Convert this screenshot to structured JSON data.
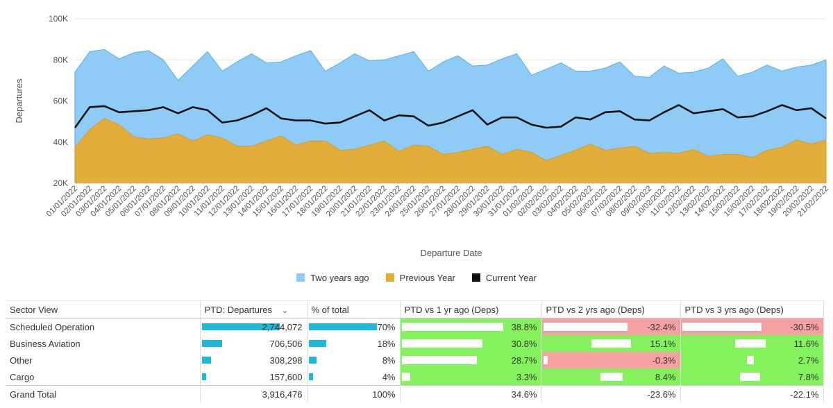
{
  "chart_data": {
    "type": "area",
    "ylabel": "Departures",
    "xlabel": "Departure Date",
    "ylim": [
      20000,
      100000
    ],
    "y_ticks": [
      20000,
      40000,
      60000,
      80000,
      100000
    ],
    "y_tick_labels": [
      "20K",
      "40K",
      "60K",
      "80K",
      "100K"
    ],
    "legend_position": "bottom",
    "grid": true,
    "x": [
      "01/01/2022",
      "02/01/2022",
      "03/01/2022",
      "04/01/2022",
      "05/01/2022",
      "06/01/2022",
      "07/01/2022",
      "08/01/2022",
      "09/01/2022",
      "10/01/2022",
      "11/01/2022",
      "12/01/2022",
      "13/01/2022",
      "14/01/2022",
      "15/01/2022",
      "16/01/2022",
      "17/01/2022",
      "18/01/2022",
      "19/01/2022",
      "20/01/2022",
      "21/01/2022",
      "22/01/2022",
      "23/01/2022",
      "24/01/2022",
      "25/01/2022",
      "26/01/2022",
      "27/01/2022",
      "28/01/2022",
      "29/01/2022",
      "30/01/2022",
      "31/01/2022",
      "01/02/2022",
      "02/02/2022",
      "03/02/2022",
      "04/02/2022",
      "05/02/2022",
      "06/02/2022",
      "07/02/2022",
      "08/02/2022",
      "09/02/2022",
      "10/02/2022",
      "11/02/2022",
      "12/02/2022",
      "13/02/2022",
      "14/02/2022",
      "15/02/2022",
      "16/02/2022",
      "17/02/2022",
      "18/02/2022",
      "19/02/2022",
      "20/02/2022",
      "21/02/2022"
    ],
    "series": [
      {
        "name": "Two years ago",
        "color": "#8ecbf7",
        "kind": "area",
        "values": [
          74000,
          84000,
          85000,
          80500,
          83500,
          84500,
          80000,
          70000,
          77000,
          84000,
          74500,
          79000,
          83000,
          78500,
          79000,
          82000,
          84500,
          74500,
          78500,
          83000,
          79500,
          80000,
          82000,
          84000,
          74500,
          79000,
          82000,
          77000,
          77500,
          80500,
          83000,
          72500,
          75500,
          78500,
          74500,
          74500,
          76000,
          79000,
          72000,
          71500,
          77000,
          73500,
          74000,
          76000,
          80500,
          72000,
          74000,
          77500,
          74500,
          76500,
          77500,
          80000
        ]
      },
      {
        "name": "Previous Year",
        "color": "#e3ad3a",
        "kind": "area",
        "values": [
          37500,
          46000,
          51500,
          48500,
          42500,
          41500,
          42000,
          44000,
          40500,
          43500,
          42000,
          38000,
          38000,
          40500,
          43000,
          38500,
          40500,
          40500,
          36000,
          36500,
          38500,
          40500,
          35500,
          38500,
          38000,
          34000,
          35000,
          36500,
          38000,
          34000,
          36500,
          35000,
          31000,
          33500,
          36000,
          39000,
          36000,
          37000,
          38000,
          34500,
          35000,
          34500,
          36500,
          33000,
          34000,
          34000,
          32500,
          36000,
          37500,
          41000,
          39000,
          41000
        ]
      },
      {
        "name": "Current Year",
        "color": "#111111",
        "kind": "line",
        "values": [
          47000,
          57000,
          57500,
          54500,
          55000,
          55500,
          57000,
          54000,
          57000,
          55500,
          49500,
          50500,
          53000,
          56500,
          51500,
          50500,
          50500,
          49000,
          49500,
          52500,
          55500,
          50500,
          53000,
          52500,
          48000,
          49500,
          52500,
          55500,
          48500,
          52000,
          52000,
          48500,
          47000,
          47500,
          52000,
          51000,
          54500,
          55000,
          51000,
          50500,
          54500,
          58000,
          54000,
          55000,
          56000,
          52000,
          52500,
          55000,
          58000,
          55500,
          56500,
          51500
        ]
      }
    ]
  },
  "table": {
    "headers": {
      "sector": "Sector View",
      "ptd": "PTD: Departures",
      "pct": "% of total",
      "vs1": "PTD vs 1 yr ago (Deps)",
      "vs2": "PTD vs 2 yrs ago (Deps)",
      "vs3": "PTD vs 3 yrs ago (Deps)"
    },
    "rows": [
      {
        "sector": "Scheduled Operation",
        "ptd": "2,744,072",
        "ptd_value": 2744072,
        "pct": "70%",
        "pct_value": 70,
        "vs1": "38.8%",
        "vs1_value": 38.8,
        "vs2": "-32.4%",
        "vs2_value": -32.4,
        "vs3": "-30.5%",
        "vs3_value": -30.5
      },
      {
        "sector": "Business Aviation",
        "ptd": "706,506",
        "ptd_value": 706506,
        "pct": "18%",
        "pct_value": 18,
        "vs1": "30.8%",
        "vs1_value": 30.8,
        "vs2": "15.1%",
        "vs2_value": 15.1,
        "vs3": "11.6%",
        "vs3_value": 11.6
      },
      {
        "sector": "Other",
        "ptd": "308,298",
        "ptd_value": 308298,
        "pct": "8%",
        "pct_value": 8,
        "vs1": "28.7%",
        "vs1_value": 28.7,
        "vs2": "-0.3%",
        "vs2_value": -0.3,
        "vs3": "2.7%",
        "vs3_value": 2.7
      },
      {
        "sector": "Cargo",
        "ptd": "157,600",
        "ptd_value": 157600,
        "pct": "4%",
        "pct_value": 4,
        "vs1": "3.3%",
        "vs1_value": 3.3,
        "vs2": "8.4%",
        "vs2_value": 8.4,
        "vs3": "7.8%",
        "vs3_value": 7.8
      }
    ],
    "total": {
      "sector": "Grand Total",
      "ptd": "3,916,476",
      "pct": "100%",
      "vs1": "34.6%",
      "vs2": "-23.6%",
      "vs3": "-22.1%"
    },
    "colors": {
      "bar": "#1fb8d6",
      "positive": "#84f25d",
      "negative": "#f6a1a1"
    },
    "sort_icon": "chevron-down-icon"
  }
}
